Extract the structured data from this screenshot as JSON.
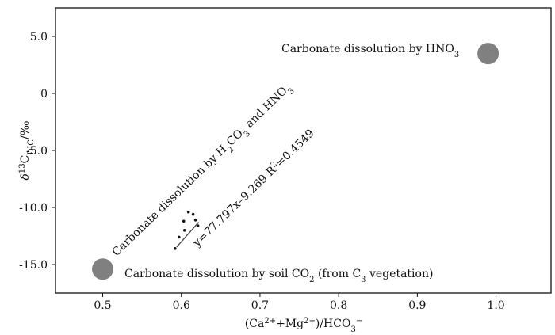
{
  "chart_data": {
    "type": "scatter",
    "xlim": [
      0.44,
      1.07
    ],
    "ylim": [
      -17.5,
      7.5
    ],
    "x_ticks": [
      0.5,
      0.6,
      0.7,
      0.8,
      0.9,
      1.0
    ],
    "x_tick_labels": [
      "0.5",
      "0.6",
      "0.7",
      "0.8",
      "0.9",
      "1.0"
    ],
    "y_ticks": [
      5.0,
      0,
      -5.0,
      -10.0,
      -15.0
    ],
    "y_tick_labels": [
      "5.0",
      "0",
      "-5.0",
      "-10.0",
      "-15.0"
    ],
    "xlabel": {
      "base": "(Ca",
      "sup1": "2+",
      "mid": "+Mg",
      "sup2": "2+",
      "tail": ")/HCO",
      "sub": "3",
      "sup3": "−"
    },
    "ylabel": {
      "pre": "δ",
      "sup": "13",
      "mid": "C",
      "sub": "DIC",
      "post": "/‰"
    },
    "grid": false,
    "endmembers": [
      {
        "x": 0.99,
        "y": 3.5,
        "label": {
          "main": "Carbonate dissolution by HNO",
          "sub": "3"
        }
      },
      {
        "x": 0.5,
        "y": -15.4,
        "label": {
          "main": "Carbonate dissolution by soil CO",
          "sub": "2",
          "tail": " (from C",
          "sub2": "3",
          "tail2": " vegetation)"
        }
      }
    ],
    "mixing_label": {
      "p1": "Carbonate dissolution by H",
      "s1": "2",
      "p2": "CO",
      "s2": "3",
      "p3": " and HNO",
      "s3": "3"
    },
    "samples": [
      {
        "x": 0.592,
        "y": -13.6
      },
      {
        "x": 0.597,
        "y": -12.6
      },
      {
        "x": 0.603,
        "y": -11.2
      },
      {
        "x": 0.604,
        "y": -12.0
      },
      {
        "x": 0.609,
        "y": -10.4
      },
      {
        "x": 0.615,
        "y": -10.6
      },
      {
        "x": 0.618,
        "y": -11.1
      },
      {
        "x": 0.621,
        "y": -11.6
      }
    ],
    "fit": {
      "x_range": [
        0.594,
        0.622
      ],
      "label": "y=77.797x–9.269",
      "r2_pre": "R",
      "r2_sup": "2",
      "r2_post": "=0.4549"
    }
  }
}
